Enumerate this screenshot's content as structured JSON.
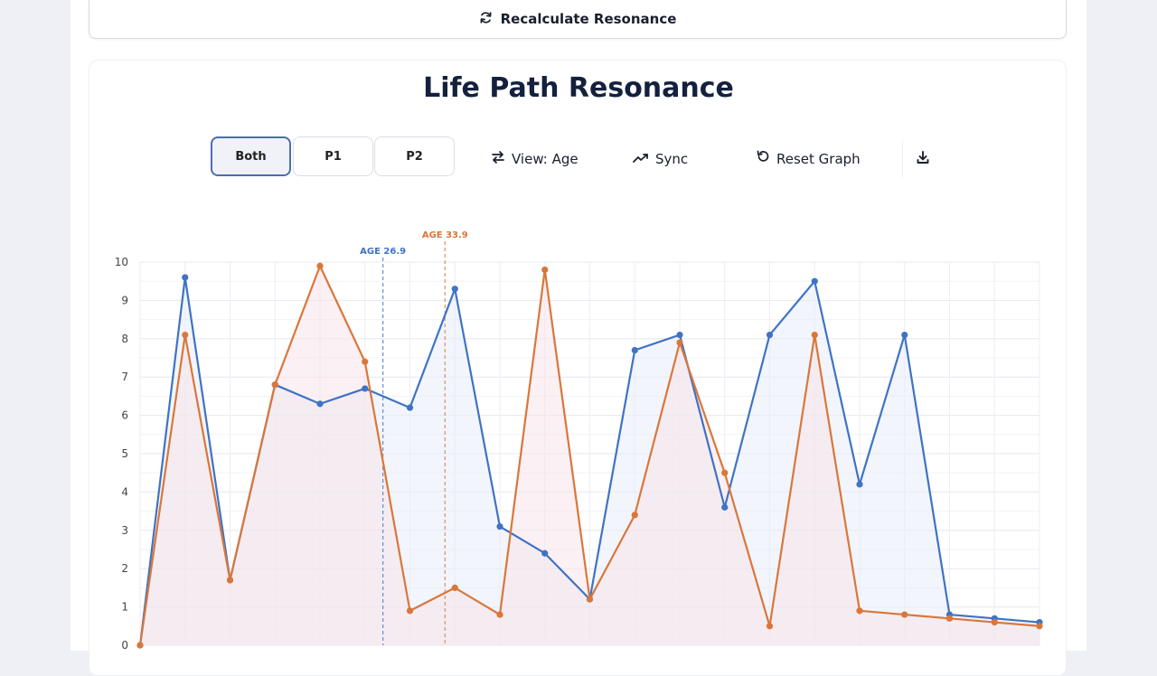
{
  "toolbar_top": {
    "recalc_label": "Recalculate Resonance"
  },
  "card": {
    "title": "Life Path Resonance"
  },
  "controls": {
    "segments": [
      "Both",
      "P1",
      "P2"
    ],
    "active_segment": "Both",
    "view_label": "View: Age",
    "sync_label": "Sync",
    "reset_label": "Reset Graph",
    "download_icon": "download-icon"
  },
  "colors": {
    "p1": "#3f73c4",
    "p2": "#d9773a",
    "p1_fill": "#e8ecfa",
    "p2_fill": "#f7e3ea"
  },
  "chart_data": {
    "type": "line",
    "x": [
      0,
      1,
      2,
      3,
      4,
      5,
      6,
      7,
      8,
      9,
      10,
      11,
      12,
      13,
      14,
      15,
      16,
      17,
      18,
      19,
      20
    ],
    "ylim": [
      0,
      10
    ],
    "yticks": [
      "0",
      "1",
      "2",
      "3",
      "4",
      "5",
      "6",
      "7",
      "8",
      "9",
      "10"
    ],
    "grid": true,
    "series": [
      {
        "values": [
          0,
          9.6,
          1.7,
          6.8,
          6.3,
          6.7,
          6.2,
          9.3,
          3.1,
          2.4,
          1.2,
          7.7,
          8.1,
          3.6,
          8.1,
          9.5,
          4.2,
          8.1,
          0.8,
          0.7,
          0.6
        ]
      },
      {
        "values": [
          0,
          8.1,
          1.7,
          6.8,
          9.9,
          7.4,
          0.9,
          1.5,
          0.8,
          9.8,
          1.2,
          3.4,
          7.9,
          4.5,
          0.5,
          8.1,
          0.9,
          0.8,
          0.7,
          0.6,
          0.5
        ]
      }
    ],
    "markers": [
      {
        "label": "AGE 26.9",
        "x": 5.4,
        "series_index": 0
      },
      {
        "label": "AGE 33.9",
        "x": 6.78,
        "series_index": 1
      }
    ]
  }
}
